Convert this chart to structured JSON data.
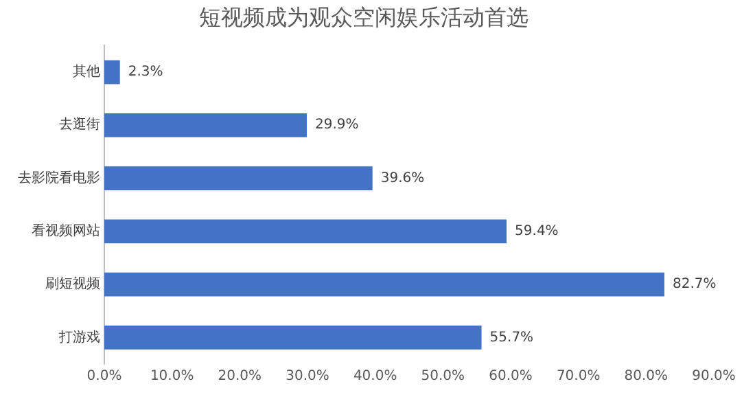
{
  "chart_data": {
    "type": "bar",
    "orientation": "horizontal",
    "title": "短视频成为观众空闲娱乐活动首选",
    "categories": [
      "其他",
      "去逛街",
      "去影院看电影",
      "看视频网站",
      "刷短视频",
      "打游戏"
    ],
    "values": [
      2.3,
      29.9,
      39.6,
      59.4,
      82.7,
      55.7
    ],
    "value_labels": [
      "2.3%",
      "29.9%",
      "39.6%",
      "59.4%",
      "82.7%",
      "55.7%"
    ],
    "color": "#4472c4",
    "xlim": [
      0,
      90
    ],
    "xticks": [
      {
        "value": 0,
        "label": "0.0%"
      },
      {
        "value": 10,
        "label": "10.0%"
      },
      {
        "value": 20,
        "label": "20.0%"
      },
      {
        "value": 30,
        "label": "30.0%"
      },
      {
        "value": 40,
        "label": "40.0%"
      },
      {
        "value": 50,
        "label": "50.0%"
      },
      {
        "value": 60,
        "label": "60.0%"
      },
      {
        "value": 70,
        "label": "70.0%"
      },
      {
        "value": 80,
        "label": "80.0%"
      },
      {
        "value": 90,
        "label": "90.0%"
      }
    ],
    "grid": false,
    "legend": false
  }
}
